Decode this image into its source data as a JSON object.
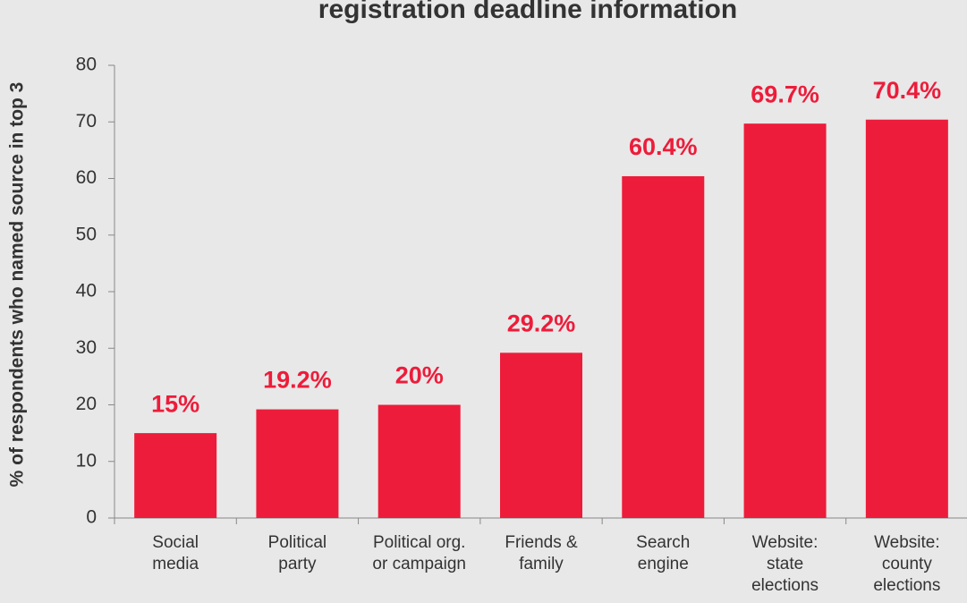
{
  "chart_data": {
    "type": "bar",
    "title": "registration deadline information",
    "y_label": "% of respondents who named source in top 3",
    "categories": [
      "Social\nmedia",
      "Political\nparty",
      "Political org.\nor campaign",
      "Friends &\nfamily",
      "Search\nengine",
      "Website:\nstate\nelections",
      "Website:\ncounty\nelections"
    ],
    "values": [
      15,
      19.2,
      20,
      29.2,
      60.4,
      69.7,
      70.4
    ],
    "value_labels": [
      "15%",
      "19.2%",
      "20%",
      "29.2%",
      "60.4%",
      "69.7%",
      "70.4%"
    ],
    "color": "#ed1c3a",
    "ylim": [
      0,
      80
    ],
    "yticks": [
      0,
      10,
      20,
      30,
      40,
      50,
      60,
      70,
      80
    ],
    "grid": false
  }
}
